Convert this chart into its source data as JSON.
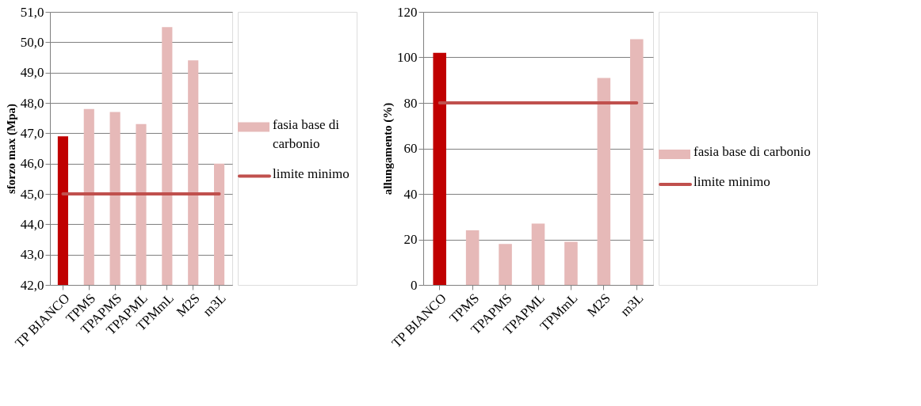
{
  "chart_data": [
    {
      "type": "bar",
      "ylabel": "sforzo max (Mpa)",
      "categories": [
        "TP BIANCO",
        "TPMS",
        "TPAPMS",
        "TPAPML",
        "TPMmL",
        "M2S",
        "m3L"
      ],
      "series": [
        {
          "type": "bar",
          "name": "fasia base di carbonio",
          "color": "#e6b9b8",
          "colors": [
            "#c00000",
            "#e6b9b8",
            "#e6b9b8",
            "#e6b9b8",
            "#e6b9b8",
            "#e6b9b8",
            "#e6b9b8"
          ],
          "values": [
            46.9,
            47.8,
            47.7,
            47.3,
            50.5,
            49.4,
            46.0
          ]
        },
        {
          "type": "line",
          "name": "limite minimo",
          "color": "#c0504d",
          "values": [
            45.0,
            45.0,
            45.0,
            45.0,
            45.0,
            45.0,
            45.0
          ]
        }
      ],
      "ylim": [
        42,
        51
      ],
      "yticks": [
        {
          "value": 42,
          "label": "42,0"
        },
        {
          "value": 43,
          "label": "43,0"
        },
        {
          "value": 44,
          "label": "44,0"
        },
        {
          "value": 45,
          "label": "45,0"
        },
        {
          "value": 46,
          "label": "46,0"
        },
        {
          "value": 47,
          "label": "47,0"
        },
        {
          "value": 48,
          "label": "48,0"
        },
        {
          "value": 49,
          "label": "49,0"
        },
        {
          "value": 50,
          "label": "50,0"
        },
        {
          "value": 51,
          "label": "51,0"
        }
      ],
      "grid": "y",
      "legend": "right"
    },
    {
      "type": "bar",
      "ylabel": "allungamento (%)",
      "categories": [
        "TP BIANCO",
        "TPMS",
        "TPAPMS",
        "TPAPML",
        "TPMmL",
        "M2S",
        "m3L"
      ],
      "series": [
        {
          "type": "bar",
          "name": "fasia base di carbonio",
          "color": "#e6b9b8",
          "colors": [
            "#c00000",
            "#e6b9b8",
            "#e6b9b8",
            "#e6b9b8",
            "#e6b9b8",
            "#e6b9b8",
            "#e6b9b8"
          ],
          "values": [
            102,
            24,
            18,
            27,
            19,
            91,
            108
          ]
        },
        {
          "type": "line",
          "name": "limite minimo",
          "color": "#c0504d",
          "values": [
            80,
            80,
            80,
            80,
            80,
            80,
            80
          ]
        }
      ],
      "ylim": [
        0,
        120
      ],
      "yticks": [
        0,
        20,
        40,
        60,
        80,
        100,
        120
      ],
      "grid": "y",
      "legend": "right"
    }
  ]
}
